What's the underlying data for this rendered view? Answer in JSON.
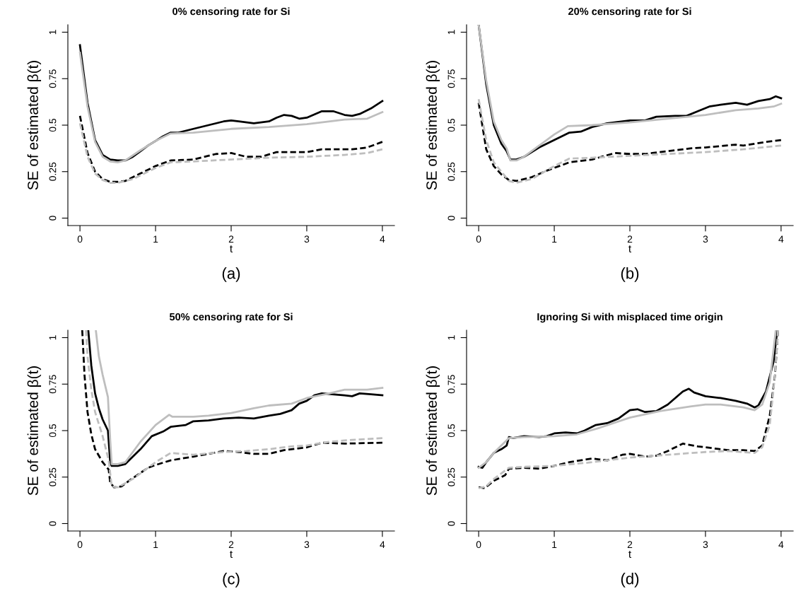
{
  "chart_data": [
    {
      "type": "line",
      "title": "0% censoring rate for Si",
      "xlabel": "t",
      "ylabel": "SE of estimated β(t)",
      "annotations": [
        "(a)"
      ],
      "xlim": [
        -0.16,
        4.16
      ],
      "ylim": [
        -0.04,
        1.04
      ],
      "xticks": [
        0,
        1,
        2,
        3,
        4
      ],
      "yticks": [
        0,
        0.25,
        0.5,
        0.75,
        1
      ],
      "grid": false,
      "series": [
        {
          "color": "#000000",
          "line_style": "solid",
          "x": [
            0,
            0.1,
            0.2,
            0.3,
            0.4,
            0.5,
            0.6,
            0.7,
            0.8,
            0.9,
            1.0,
            1.1,
            1.2,
            1.3,
            1.5,
            1.7,
            1.9,
            2.0,
            2.1,
            2.3,
            2.5,
            2.6,
            2.7,
            2.8,
            2.9,
            3.0,
            3.2,
            3.35,
            3.5,
            3.6,
            3.7,
            3.85,
            4.0
          ],
          "values": [
            0.93,
            0.62,
            0.42,
            0.34,
            0.315,
            0.31,
            0.31,
            0.33,
            0.36,
            0.39,
            0.415,
            0.44,
            0.46,
            0.46,
            0.48,
            0.5,
            0.52,
            0.525,
            0.52,
            0.51,
            0.52,
            0.54,
            0.555,
            0.55,
            0.535,
            0.54,
            0.575,
            0.575,
            0.555,
            0.55,
            0.56,
            0.59,
            0.63
          ]
        },
        {
          "color": "#bebebe",
          "line_style": "solid",
          "x": [
            0,
            0.1,
            0.2,
            0.3,
            0.4,
            0.5,
            0.6,
            0.8,
            1.0,
            1.2,
            1.5,
            2.0,
            2.5,
            3.0,
            3.5,
            3.8,
            4.0
          ],
          "values": [
            0.89,
            0.6,
            0.41,
            0.33,
            0.305,
            0.3,
            0.31,
            0.365,
            0.415,
            0.455,
            0.46,
            0.48,
            0.49,
            0.505,
            0.53,
            0.535,
            0.57
          ]
        },
        {
          "color": "#000000",
          "line_style": "dashed",
          "x": [
            0,
            0.1,
            0.2,
            0.3,
            0.4,
            0.5,
            0.6,
            0.8,
            1.0,
            1.2,
            1.5,
            1.8,
            2.0,
            2.2,
            2.4,
            2.6,
            2.8,
            3.0,
            3.2,
            3.6,
            3.8,
            4.0
          ],
          "values": [
            0.55,
            0.35,
            0.25,
            0.21,
            0.195,
            0.195,
            0.2,
            0.24,
            0.28,
            0.31,
            0.315,
            0.345,
            0.35,
            0.33,
            0.33,
            0.355,
            0.355,
            0.355,
            0.37,
            0.37,
            0.38,
            0.41
          ]
        },
        {
          "color": "#bebebe",
          "line_style": "dashed",
          "x": [
            0,
            0.1,
            0.2,
            0.3,
            0.4,
            0.5,
            0.7,
            1.0,
            1.2,
            1.5,
            2.0,
            2.5,
            3.0,
            3.5,
            3.8,
            4.0
          ],
          "values": [
            0.51,
            0.33,
            0.24,
            0.205,
            0.19,
            0.19,
            0.21,
            0.27,
            0.3,
            0.305,
            0.315,
            0.325,
            0.33,
            0.34,
            0.35,
            0.37
          ]
        }
      ]
    },
    {
      "type": "line",
      "title": "20% censoring rate for Si",
      "xlabel": "t",
      "ylabel": "SE of estimated β(t)",
      "annotations": [
        "(b)"
      ],
      "xlim": [
        -0.16,
        4.16
      ],
      "ylim": [
        -0.04,
        1.04
      ],
      "xticks": [
        0,
        1,
        2,
        3,
        4
      ],
      "yticks": [
        0,
        0.25,
        0.5,
        0.75,
        1
      ],
      "grid": false,
      "series": [
        {
          "color": "#000000",
          "line_style": "solid",
          "x": [
            0,
            0.1,
            0.2,
            0.3,
            0.37,
            0.42,
            0.5,
            0.6,
            0.8,
            1.0,
            1.1,
            1.2,
            1.35,
            1.5,
            1.7,
            2.0,
            2.2,
            2.35,
            2.6,
            2.75,
            2.9,
            3.05,
            3.2,
            3.4,
            3.55,
            3.7,
            3.85,
            3.93,
            4.0
          ],
          "values": [
            1.04,
            0.72,
            0.5,
            0.4,
            0.36,
            0.315,
            0.315,
            0.33,
            0.38,
            0.42,
            0.44,
            0.46,
            0.465,
            0.49,
            0.51,
            0.525,
            0.525,
            0.545,
            0.55,
            0.55,
            0.575,
            0.6,
            0.61,
            0.62,
            0.61,
            0.63,
            0.64,
            0.655,
            0.645
          ]
        },
        {
          "color": "#bebebe",
          "line_style": "solid",
          "x": [
            0,
            0.1,
            0.2,
            0.3,
            0.37,
            0.42,
            0.5,
            0.6,
            0.8,
            1.0,
            1.18,
            1.5,
            2.0,
            2.5,
            3.0,
            3.4,
            3.7,
            3.9,
            4.0
          ],
          "values": [
            1.04,
            0.74,
            0.52,
            0.42,
            0.375,
            0.31,
            0.31,
            0.33,
            0.39,
            0.45,
            0.495,
            0.5,
            0.515,
            0.535,
            0.555,
            0.58,
            0.59,
            0.6,
            0.615
          ]
        },
        {
          "color": "#000000",
          "line_style": "dashed",
          "x": [
            0,
            0.1,
            0.2,
            0.3,
            0.4,
            0.5,
            0.7,
            0.9,
            1.0,
            1.2,
            1.5,
            1.8,
            2.0,
            2.2,
            2.5,
            2.8,
            3.0,
            3.4,
            3.5,
            3.8,
            4.0
          ],
          "values": [
            0.62,
            0.37,
            0.28,
            0.235,
            0.205,
            0.2,
            0.22,
            0.255,
            0.27,
            0.3,
            0.315,
            0.35,
            0.345,
            0.345,
            0.36,
            0.375,
            0.38,
            0.395,
            0.39,
            0.41,
            0.42
          ]
        },
        {
          "color": "#bebebe",
          "line_style": "dashed",
          "x": [
            0,
            0.1,
            0.2,
            0.3,
            0.4,
            0.5,
            0.7,
            1.0,
            1.2,
            1.5,
            2.0,
            2.5,
            3.0,
            3.5,
            4.0
          ],
          "values": [
            0.64,
            0.42,
            0.3,
            0.25,
            0.2,
            0.19,
            0.21,
            0.28,
            0.32,
            0.325,
            0.335,
            0.345,
            0.355,
            0.37,
            0.39
          ]
        }
      ]
    },
    {
      "type": "line",
      "title": "50% censoring rate for Si",
      "xlabel": "t",
      "ylabel": "SE of estimated β(t)",
      "annotations": [
        "(c)"
      ],
      "xlim": [
        -0.16,
        4.16
      ],
      "ylim": [
        -0.04,
        1.04
      ],
      "xticks": [
        0,
        1,
        2,
        3,
        4
      ],
      "yticks": [
        0,
        0.25,
        0.5,
        0.75,
        1
      ],
      "grid": false,
      "series": [
        {
          "color": "#000000",
          "line_style": "solid",
          "x": [
            0.11,
            0.15,
            0.2,
            0.25,
            0.3,
            0.37,
            0.4,
            0.42,
            0.5,
            0.6,
            0.8,
            0.95,
            1.1,
            1.2,
            1.4,
            1.5,
            1.7,
            1.9,
            2.1,
            2.3,
            2.5,
            2.65,
            2.8,
            2.9,
            3.0,
            3.1,
            3.2,
            3.5,
            3.6,
            3.7,
            3.85,
            4.0
          ],
          "values": [
            1.04,
            0.85,
            0.7,
            0.62,
            0.56,
            0.5,
            0.33,
            0.31,
            0.31,
            0.32,
            0.4,
            0.47,
            0.495,
            0.52,
            0.53,
            0.55,
            0.555,
            0.565,
            0.57,
            0.565,
            0.58,
            0.59,
            0.61,
            0.645,
            0.66,
            0.69,
            0.7,
            0.69,
            0.685,
            0.7,
            0.695,
            0.69
          ]
        },
        {
          "color": "#bebebe",
          "line_style": "solid",
          "x": [
            0.21,
            0.25,
            0.3,
            0.37,
            0.4,
            0.42,
            0.5,
            0.6,
            0.8,
            1.0,
            1.18,
            1.22,
            1.5,
            1.7,
            2.0,
            2.3,
            2.5,
            2.8,
            3.0,
            3.3,
            3.5,
            3.8,
            4.0
          ],
          "values": [
            1.04,
            0.9,
            0.8,
            0.68,
            0.45,
            0.32,
            0.32,
            0.33,
            0.44,
            0.53,
            0.585,
            0.575,
            0.575,
            0.58,
            0.595,
            0.62,
            0.635,
            0.645,
            0.675,
            0.7,
            0.72,
            0.72,
            0.73
          ]
        },
        {
          "color": "#000000",
          "line_style": "dashed",
          "x": [
            0.03,
            0.06,
            0.1,
            0.15,
            0.2,
            0.3,
            0.38,
            0.4,
            0.45,
            0.55,
            0.7,
            0.9,
            1.0,
            1.2,
            1.5,
            1.7,
            1.9,
            2.1,
            2.3,
            2.5,
            2.7,
            3.0,
            3.2,
            3.5,
            4.0
          ],
          "values": [
            1.04,
            0.8,
            0.6,
            0.48,
            0.4,
            0.33,
            0.29,
            0.22,
            0.195,
            0.2,
            0.245,
            0.3,
            0.315,
            0.34,
            0.36,
            0.375,
            0.39,
            0.385,
            0.375,
            0.375,
            0.395,
            0.41,
            0.435,
            0.43,
            0.435
          ]
        },
        {
          "color": "#bebebe",
          "line_style": "dashed",
          "x": [
            0.08,
            0.1,
            0.15,
            0.2,
            0.3,
            0.38,
            0.42,
            0.5,
            0.7,
            0.9,
            1.0,
            1.2,
            1.5,
            1.9,
            2.2,
            2.5,
            2.8,
            3.0,
            3.3,
            3.6,
            4.0
          ],
          "values": [
            1.04,
            0.9,
            0.72,
            0.6,
            0.47,
            0.34,
            0.2,
            0.195,
            0.24,
            0.3,
            0.33,
            0.38,
            0.37,
            0.385,
            0.39,
            0.4,
            0.415,
            0.42,
            0.44,
            0.45,
            0.46
          ]
        }
      ]
    },
    {
      "type": "line",
      "title": "Ignoring Si with misplaced time origin",
      "xlabel": "t",
      "ylabel": "SE of estimated β(t)",
      "annotations": [
        "(d)"
      ],
      "xlim": [
        -0.16,
        4.16
      ],
      "ylim": [
        -0.04,
        1.04
      ],
      "xticks": [
        0,
        1,
        2,
        3,
        4
      ],
      "yticks": [
        0,
        0.25,
        0.5,
        0.75,
        1
      ],
      "grid": false,
      "series": [
        {
          "color": "#000000",
          "line_style": "solid",
          "x": [
            0,
            0.05,
            0.1,
            0.2,
            0.3,
            0.37,
            0.4,
            0.45,
            0.6,
            0.8,
            0.9,
            1.0,
            1.15,
            1.3,
            1.4,
            1.55,
            1.7,
            1.85,
            2.0,
            2.1,
            2.2,
            2.35,
            2.5,
            2.6,
            2.7,
            2.78,
            2.85,
            3.0,
            3.2,
            3.4,
            3.55,
            3.65,
            3.7,
            3.8,
            3.9,
            3.95
          ],
          "values": [
            0.305,
            0.3,
            0.33,
            0.38,
            0.4,
            0.42,
            0.465,
            0.46,
            0.47,
            0.465,
            0.47,
            0.485,
            0.49,
            0.485,
            0.5,
            0.53,
            0.54,
            0.565,
            0.61,
            0.615,
            0.6,
            0.605,
            0.64,
            0.675,
            0.71,
            0.725,
            0.705,
            0.685,
            0.675,
            0.66,
            0.645,
            0.625,
            0.635,
            0.71,
            0.87,
            1.04
          ]
        },
        {
          "color": "#bebebe",
          "line_style": "solid",
          "x": [
            0,
            0.1,
            0.2,
            0.4,
            0.6,
            1.0,
            1.3,
            1.6,
            2.0,
            2.4,
            2.8,
            3.0,
            3.2,
            3.5,
            3.65,
            3.75,
            3.85,
            3.93
          ],
          "values": [
            0.3,
            0.33,
            0.38,
            0.46,
            0.465,
            0.47,
            0.48,
            0.515,
            0.57,
            0.605,
            0.63,
            0.64,
            0.64,
            0.625,
            0.61,
            0.64,
            0.76,
            1.04
          ]
        },
        {
          "color": "#000000",
          "line_style": "dashed",
          "x": [
            0,
            0.08,
            0.2,
            0.35,
            0.4,
            0.6,
            0.8,
            1.0,
            1.2,
            1.5,
            1.6,
            1.7,
            1.9,
            2.0,
            2.2,
            2.35,
            2.5,
            2.7,
            2.9,
            3.1,
            3.3,
            3.5,
            3.65,
            3.75,
            3.85,
            3.92,
            3.96
          ],
          "values": [
            0.195,
            0.19,
            0.23,
            0.26,
            0.295,
            0.3,
            0.295,
            0.31,
            0.33,
            0.35,
            0.345,
            0.34,
            0.37,
            0.375,
            0.36,
            0.365,
            0.39,
            0.43,
            0.415,
            0.405,
            0.395,
            0.395,
            0.39,
            0.42,
            0.58,
            0.8,
            1.04
          ]
        },
        {
          "color": "#bebebe",
          "line_style": "dashed",
          "x": [
            0,
            0.1,
            0.2,
            0.4,
            0.6,
            1.0,
            1.5,
            2.0,
            2.5,
            3.0,
            3.3,
            3.65,
            3.75,
            3.85,
            3.92,
            3.96
          ],
          "values": [
            0.19,
            0.2,
            0.24,
            0.3,
            0.305,
            0.31,
            0.33,
            0.355,
            0.37,
            0.385,
            0.39,
            0.38,
            0.41,
            0.53,
            0.8,
            1.04
          ]
        }
      ]
    }
  ]
}
